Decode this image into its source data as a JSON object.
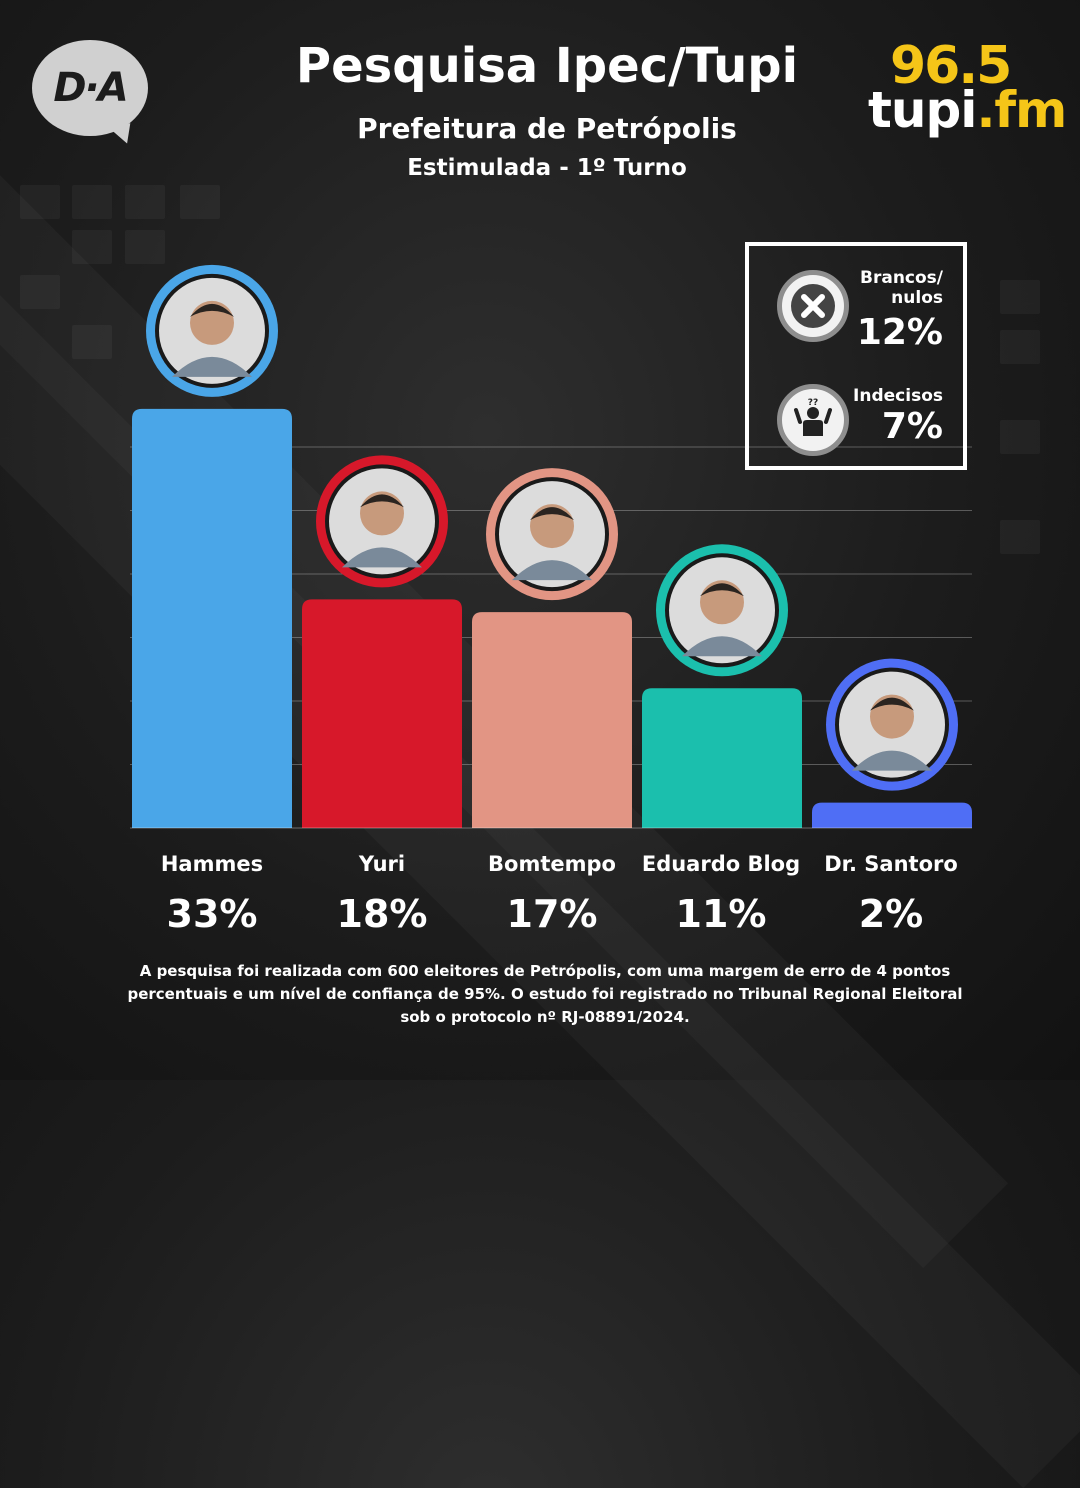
{
  "header": {
    "title": "Pesquisa Ipec/Tupi",
    "subtitle": "Prefeitura de Petrópolis",
    "subtitle2": "Estimulada - 1º Turno"
  },
  "logos": {
    "left": "D·A",
    "right_number": "96.5",
    "right_name": "tupi",
    "right_suffix": ".fm"
  },
  "legend": {
    "items": [
      {
        "label": "Brancos/\nnulos",
        "value": "12%",
        "icon": "x-circle-icon"
      },
      {
        "label": "Indecisos",
        "value": "7%",
        "icon": "undecided-person-icon"
      }
    ]
  },
  "chart_data": {
    "type": "bar",
    "title": "Pesquisa Ipec/Tupi",
    "subtitle": "Prefeitura de Petrópolis - Estimulada - 1º Turno",
    "xlabel": "",
    "ylabel": "",
    "ylim": [
      0,
      35
    ],
    "grid": true,
    "categories": [
      "Hammes",
      "Yuri",
      "Bomtempo",
      "Eduardo Blog",
      "Dr. Santoro"
    ],
    "values": [
      33,
      18,
      17,
      11,
      2
    ],
    "labels": [
      "33%",
      "18%",
      "17%",
      "11%",
      "2%"
    ],
    "colors": [
      "#4aa6e8",
      "#d7182a",
      "#e29584",
      "#1bbfad",
      "#4f6ef5"
    ]
  },
  "footnote": "A pesquisa foi realizada com 600 eleitores de Petrópolis, com uma margem de erro de 4 pontos percentuais e um nível de confiança de 95%. O estudo foi registrado no Tribunal Regional Eleitoral sob o protocolo nº RJ-08891/2024."
}
